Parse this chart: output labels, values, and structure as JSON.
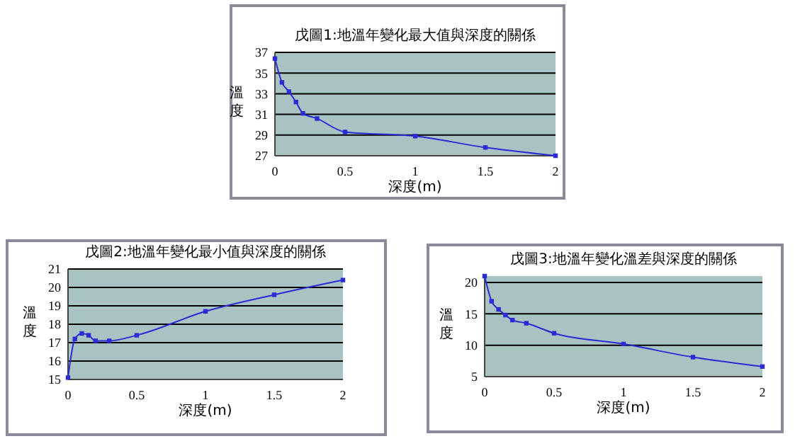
{
  "chart_data": [
    {
      "type": "line",
      "title": "戊圖1:地溫年變化最大值與深度的關係",
      "xlabel": "深度(m)",
      "ylabel": "溫度",
      "x": [
        0,
        0.05,
        0.1,
        0.15,
        0.2,
        0.3,
        0.5,
        1,
        1.5,
        2
      ],
      "series": [
        {
          "color": "#2b2bd6",
          "values": [
            36.4,
            34.1,
            33.2,
            32.2,
            31.1,
            30.6,
            29.3,
            28.9,
            27.8,
            27.0
          ]
        }
      ],
      "xlim": [
        0,
        2
      ],
      "xticks": [
        0,
        0.5,
        1,
        1.5,
        2
      ],
      "ylim": [
        27,
        37
      ],
      "yticks": [
        27,
        29,
        31,
        33,
        35,
        37
      ],
      "grid": "y",
      "marker": "square"
    },
    {
      "type": "line",
      "title": "戊圖2:地溫年變化最小值與深度的關係",
      "xlabel": "深度(m)",
      "ylabel": "溫度",
      "x": [
        0,
        0.05,
        0.1,
        0.15,
        0.2,
        0.3,
        0.5,
        1,
        1.5,
        2
      ],
      "series": [
        {
          "color": "#2b2bd6",
          "values": [
            15.1,
            17.2,
            17.5,
            17.4,
            17.1,
            17.1,
            17.4,
            18.7,
            19.6,
            20.4
          ]
        }
      ],
      "xlim": [
        0,
        2
      ],
      "xticks": [
        0,
        0.5,
        1,
        1.5,
        2
      ],
      "ylim": [
        15,
        21
      ],
      "yticks": [
        15,
        16,
        17,
        18,
        19,
        20,
        21
      ],
      "grid": "y",
      "marker": "square"
    },
    {
      "type": "line",
      "title": "戊圖3:地溫年變化溫差與深度的關係",
      "xlabel": "深度(m)",
      "ylabel": "溫度",
      "x": [
        0,
        0.05,
        0.1,
        0.15,
        0.2,
        0.3,
        0.5,
        1,
        1.5,
        2
      ],
      "series": [
        {
          "color": "#2b2bd6",
          "values": [
            21.0,
            17.0,
            15.7,
            14.8,
            14.0,
            13.5,
            11.9,
            10.2,
            8.1,
            6.6
          ]
        }
      ],
      "xlim": [
        0,
        2
      ],
      "xticks": [
        0,
        0.5,
        1,
        1.5,
        2
      ],
      "ylim": [
        5,
        21
      ],
      "yticks": [
        5,
        10,
        15,
        20
      ],
      "grid": "y",
      "marker": "square"
    }
  ]
}
